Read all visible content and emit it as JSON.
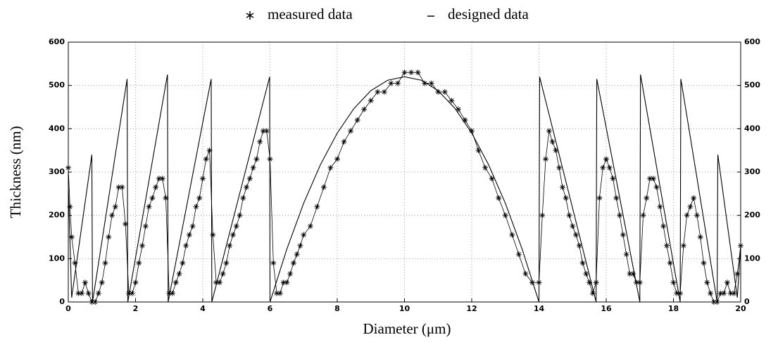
{
  "chart_data": {
    "type": "line",
    "xlabel": "Diameter (μm)",
    "ylabel": "Thickness (nm)",
    "xlim": [
      0,
      20
    ],
    "xticks": [
      0,
      2,
      4,
      6,
      8,
      10,
      12,
      14,
      16,
      18,
      20
    ],
    "ylim": [
      0,
      600
    ],
    "yticks": [
      0,
      100,
      200,
      300,
      400,
      500,
      600
    ],
    "y2lim": [
      0,
      600
    ],
    "y2ticks": [
      0,
      100,
      200,
      300,
      400,
      500,
      600
    ],
    "grid": true,
    "legend": "top",
    "series": [
      {
        "name": "measured data",
        "color": "#000000",
        "marker": "star",
        "x": [
          0,
          0.05,
          0.1,
          0.2,
          0.3,
          0.4,
          0.5,
          0.6,
          0.7,
          0.8,
          0.9,
          1.0,
          1.1,
          1.2,
          1.3,
          1.4,
          1.5,
          1.6,
          1.7,
          1.8,
          1.9,
          2.0,
          2.1,
          2.2,
          2.3,
          2.4,
          2.5,
          2.6,
          2.7,
          2.8,
          2.9,
          3.0,
          3.1,
          3.2,
          3.3,
          3.4,
          3.5,
          3.6,
          3.7,
          3.8,
          3.9,
          4.0,
          4.1,
          4.2,
          4.3,
          4.4,
          4.5,
          4.6,
          4.7,
          4.8,
          4.9,
          5.0,
          5.1,
          5.2,
          5.3,
          5.4,
          5.5,
          5.6,
          5.7,
          5.8,
          5.9,
          6.0,
          6.1,
          6.2,
          6.3,
          6.4,
          6.5,
          6.6,
          6.7,
          6.8,
          6.9,
          7.0,
          7.2,
          7.4,
          7.6,
          7.8,
          8.0,
          8.2,
          8.4,
          8.6,
          8.8,
          9.0,
          9.2,
          9.4,
          9.6,
          9.8,
          10.0,
          10.2,
          10.4,
          10.6,
          10.8,
          11.0,
          11.2,
          11.4,
          11.6,
          11.8,
          12.0,
          12.2,
          12.4,
          12.6,
          12.8,
          13.0,
          13.2,
          13.4,
          13.6,
          13.8,
          14.0,
          14.1,
          14.2,
          14.3,
          14.4,
          14.5,
          14.6,
          14.7,
          14.8,
          14.9,
          15.0,
          15.1,
          15.2,
          15.3,
          15.4,
          15.5,
          15.6,
          15.7,
          15.8,
          15.9,
          16.0,
          16.1,
          16.2,
          16.3,
          16.4,
          16.5,
          16.6,
          16.7,
          16.8,
          16.9,
          17.0,
          17.1,
          17.2,
          17.3,
          17.4,
          17.5,
          17.6,
          17.7,
          17.8,
          17.9,
          18.0,
          18.1,
          18.2,
          18.3,
          18.4,
          18.5,
          18.6,
          18.7,
          18.8,
          18.9,
          19.0,
          19.1,
          19.2,
          19.3,
          19.4,
          19.5,
          19.6,
          19.7,
          19.8,
          19.9,
          20.0
        ],
        "values": [
          310,
          220,
          150,
          90,
          20,
          20,
          45,
          20,
          0,
          0,
          20,
          45,
          90,
          150,
          200,
          220,
          265,
          265,
          180,
          20,
          20,
          45,
          90,
          130,
          175,
          220,
          240,
          265,
          285,
          285,
          240,
          20,
          20,
          45,
          65,
          90,
          130,
          155,
          175,
          220,
          240,
          285,
          330,
          350,
          155,
          45,
          45,
          65,
          90,
          130,
          155,
          175,
          200,
          240,
          265,
          285,
          310,
          330,
          370,
          395,
          395,
          330,
          90,
          20,
          20,
          45,
          45,
          65,
          90,
          110,
          130,
          155,
          175,
          220,
          265,
          310,
          330,
          370,
          395,
          420,
          445,
          465,
          485,
          485,
          505,
          505,
          530,
          530,
          530,
          505,
          505,
          485,
          485,
          465,
          445,
          420,
          395,
          350,
          310,
          285,
          240,
          200,
          155,
          110,
          65,
          45,
          45,
          200,
          330,
          395,
          370,
          350,
          310,
          265,
          240,
          200,
          175,
          155,
          130,
          90,
          65,
          45,
          20,
          45,
          240,
          310,
          330,
          310,
          285,
          240,
          200,
          155,
          110,
          65,
          65,
          45,
          45,
          200,
          240,
          285,
          285,
          265,
          220,
          175,
          130,
          90,
          45,
          20,
          20,
          130,
          200,
          220,
          240,
          200,
          150,
          90,
          45,
          20,
          0,
          0,
          20,
          20,
          45,
          20,
          20,
          65,
          130
        ]
      },
      {
        "name": "designed data",
        "color": "#000000",
        "marker": "none",
        "x": [
          0,
          0.1,
          0.7,
          0.72,
          1.75,
          1.77,
          2.95,
          2.97,
          4.25,
          4.27,
          5.99,
          6,
          6.5,
          7,
          7.5,
          8,
          8.5,
          9,
          9.5,
          10,
          10.5,
          11,
          11.5,
          12,
          12.5,
          13,
          13.5,
          14,
          14.02,
          15.7,
          15.72,
          17,
          17.02,
          18.2,
          18.22,
          19.3,
          19.32,
          19.9,
          20
        ],
        "values": [
          270,
          10,
          340,
          0,
          515,
          0,
          525,
          0,
          515,
          0,
          520,
          0,
          122,
          228,
          317,
          390,
          447,
          488,
          512,
          520,
          512,
          488,
          447,
          390,
          317,
          228,
          122,
          0,
          520,
          0,
          515,
          0,
          525,
          0,
          515,
          0,
          340,
          10,
          130
        ]
      }
    ]
  }
}
